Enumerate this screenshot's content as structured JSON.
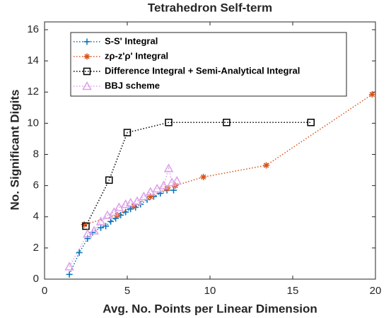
{
  "chart_data": {
    "type": "line",
    "title": "Tetrahedron Self-term",
    "xlabel": "Avg. No. Points per Linear Dimension",
    "ylabel": "No. Significant Digits",
    "xlim": [
      0,
      20
    ],
    "xticks": [
      0,
      5,
      10,
      15,
      20
    ],
    "ylim": [
      0,
      16.5
    ],
    "yticks": [
      0,
      2,
      4,
      6,
      8,
      10,
      12,
      14,
      16
    ],
    "legend": "upper-left",
    "series": [
      {
        "name": "S-S' Integral",
        "color": "#0072BD",
        "marker": "plus",
        "x": [
          1.5,
          2.1,
          2.6,
          2.9,
          3.4,
          3.7,
          4.0,
          4.3,
          4.6,
          4.9,
          5.2,
          5.5,
          5.8,
          6.2,
          6.6,
          7.0,
          7.4,
          7.8
        ],
        "values": [
          0.3,
          1.7,
          2.6,
          3.0,
          3.3,
          3.4,
          3.7,
          3.9,
          4.1,
          4.3,
          4.5,
          4.6,
          4.8,
          5.1,
          5.3,
          5.5,
          5.7,
          5.7
        ]
      },
      {
        "name": "zρ-z'ρ' Integral",
        "color": "#D95319",
        "marker": "asterisk",
        "x": [
          2.4,
          4.4,
          5.4,
          6.4,
          7.4,
          7.9,
          9.6,
          13.4,
          19.8
        ],
        "values": [
          3.5,
          4.1,
          4.7,
          5.3,
          5.8,
          6.0,
          6.55,
          7.3,
          11.85
        ]
      },
      {
        "name": "Difference Integral + Semi-Analytical Integral",
        "color": "#000000",
        "marker": "square",
        "x": [
          2.5,
          3.9,
          5.0,
          7.5,
          11.0,
          16.1
        ],
        "values": [
          3.4,
          6.35,
          9.4,
          10.05,
          10.05,
          10.05
        ]
      },
      {
        "name": "BBJ scheme",
        "color": "#DDA0E8",
        "marker": "triangle",
        "x": [
          1.5,
          2.6,
          3.0,
          3.4,
          3.8,
          4.2,
          4.5,
          4.9,
          5.2,
          5.6,
          6.0,
          6.4,
          6.8,
          7.2,
          7.5,
          7.7,
          8.0
        ],
        "values": [
          0.8,
          2.9,
          3.1,
          3.7,
          4.1,
          4.3,
          4.6,
          4.8,
          4.9,
          5.0,
          5.3,
          5.6,
          5.8,
          6.0,
          7.1,
          6.2,
          6.3
        ]
      }
    ]
  }
}
